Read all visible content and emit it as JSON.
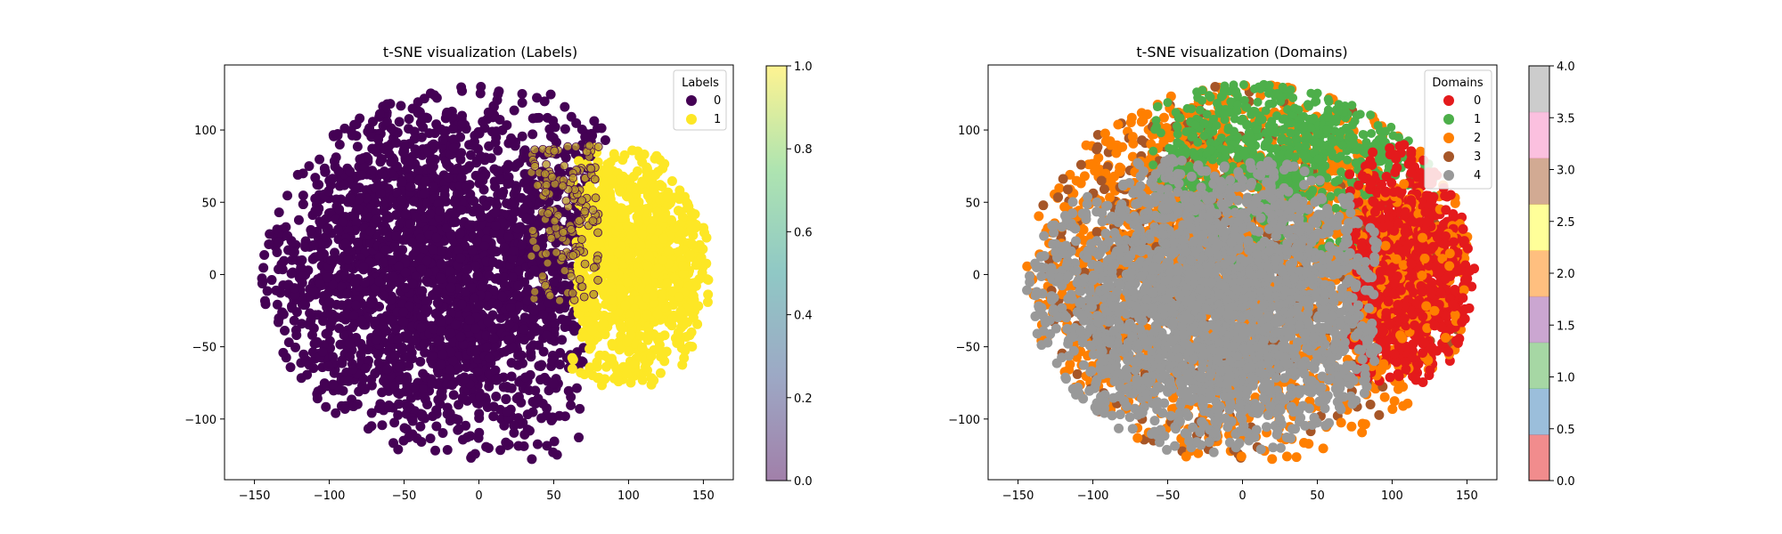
{
  "chart_data": [
    {
      "type": "scatter",
      "title": "t-SNE visualization (Labels)",
      "xlabel": "",
      "ylabel": "",
      "xlim": [
        -170,
        170
      ],
      "ylim": [
        -142,
        145
      ],
      "xticks": [
        -150,
        -100,
        -50,
        0,
        50,
        100,
        150
      ],
      "yticks": [
        -100,
        -50,
        0,
        50,
        100
      ],
      "xtick_labels": [
        "−150",
        "−100",
        "−50",
        "0",
        "50",
        "100",
        "150"
      ],
      "ytick_labels": [
        "−100",
        "−50",
        "0",
        "50",
        "100"
      ],
      "legend": {
        "title": "Labels",
        "placement": "top-right",
        "entries": [
          {
            "label": "0",
            "color": "#440154"
          },
          {
            "label": "1",
            "color": "#fde725"
          }
        ]
      },
      "series": [
        {
          "name": "0",
          "color": "#440154",
          "region": {
            "x_range": [
              -150,
              95
            ],
            "y_range": [
              -128,
              133
            ],
            "approx_center": [
              -30,
              0
            ]
          }
        },
        {
          "name": "1",
          "color": "#fde725",
          "region": {
            "x_range": [
              60,
              155
            ],
            "y_range": [
              -78,
              88
            ],
            "approx_center": [
              105,
              5
            ]
          }
        }
      ],
      "colorbar": {
        "colormap": "viridis",
        "alpha": 0.5,
        "range": [
          0.0,
          1.0
        ],
        "ticks": [
          0.0,
          0.2,
          0.4,
          0.6,
          0.8,
          1.0
        ],
        "tick_labels": [
          "0.0",
          "0.2",
          "0.4",
          "0.6",
          "0.8",
          "1.0"
        ]
      }
    },
    {
      "type": "scatter",
      "title": "t-SNE visualization (Domains)",
      "xlabel": "",
      "ylabel": "",
      "xlim": [
        -170,
        170
      ],
      "ylim": [
        -142,
        145
      ],
      "xticks": [
        -150,
        -100,
        -50,
        0,
        50,
        100,
        150
      ],
      "yticks": [
        -100,
        -50,
        0,
        50,
        100
      ],
      "xtick_labels": [
        "−150",
        "−100",
        "−50",
        "0",
        "50",
        "100",
        "150"
      ],
      "ytick_labels": [
        "−100",
        "−50",
        "0",
        "50",
        "100"
      ],
      "legend": {
        "title": "Domains",
        "placement": "top-right",
        "entries": [
          {
            "label": "0",
            "color": "#e41a1c"
          },
          {
            "label": "1",
            "color": "#4daf4a"
          },
          {
            "label": "2",
            "color": "#ff7f00"
          },
          {
            "label": "3",
            "color": "#a65628"
          },
          {
            "label": "4",
            "color": "#999999"
          }
        ]
      },
      "series": [
        {
          "name": "0",
          "color": "#e41a1c",
          "region": {
            "x_range": [
              65,
              155
            ],
            "y_range": [
              -75,
              90
            ],
            "approx_center": [
              110,
              0
            ]
          }
        },
        {
          "name": "1",
          "color": "#4daf4a",
          "region": {
            "x_range": [
              -60,
              130
            ],
            "y_range": [
              -20,
              133
            ],
            "approx_center": [
              30,
              90
            ]
          }
        },
        {
          "name": "2",
          "color": "#ff7f00",
          "region": {
            "x_range": [
              -150,
              150
            ],
            "y_range": [
              -128,
              133
            ],
            "approx_center": [
              -60,
              80
            ]
          }
        },
        {
          "name": "3",
          "color": "#a65628",
          "region": {
            "x_range": [
              -150,
              80
            ],
            "y_range": [
              -128,
              133
            ],
            "approx_center": [
              -100,
              -60
            ]
          }
        },
        {
          "name": "4",
          "color": "#999999",
          "region": {
            "x_range": [
              -145,
              90
            ],
            "y_range": [
              -125,
              80
            ],
            "approx_center": [
              -20,
              -20
            ]
          }
        }
      ],
      "colorbar": {
        "colormap": "Set1",
        "alpha": 0.5,
        "range": [
          0.0,
          4.0
        ],
        "ticks": [
          0.0,
          0.5,
          1.0,
          1.5,
          2.0,
          2.5,
          3.0,
          3.5,
          4.0
        ],
        "tick_labels": [
          "0.0",
          "0.5",
          "1.0",
          "1.5",
          "2.0",
          "2.5",
          "3.0",
          "3.5",
          "4.0"
        ],
        "segments": [
          "#e41a1c",
          "#377eb8",
          "#4daf4a",
          "#984ea3",
          "#ff7f00",
          "#ffff33",
          "#a65628",
          "#f781bf",
          "#999999"
        ]
      }
    }
  ]
}
